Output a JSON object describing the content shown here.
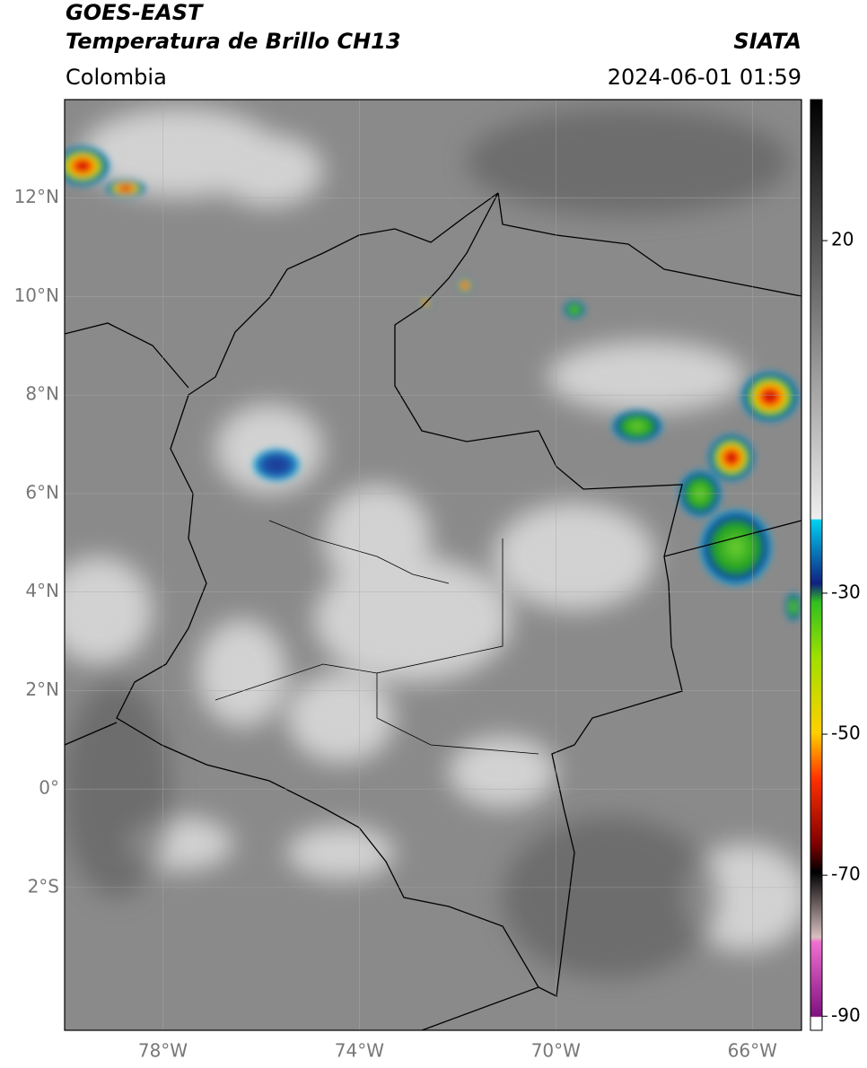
{
  "header": {
    "title_line1": "GOES-EAST",
    "title_line2": "Temperatura de Brillo CH13",
    "region": "Colombia",
    "source": "SIATA",
    "timestamp": "2024-06-01 01:59"
  },
  "map": {
    "lon_range": [
      -80,
      -65
    ],
    "lat_range": [
      -4.9,
      14
    ],
    "lon_ticks": [
      {
        "value": -78,
        "label": "78°W"
      },
      {
        "value": -74,
        "label": "74°W"
      },
      {
        "value": -70,
        "label": "70°W"
      },
      {
        "value": -66,
        "label": "66°W"
      }
    ],
    "lat_ticks": [
      {
        "value": 12,
        "label": "12°N"
      },
      {
        "value": 10,
        "label": "10°N"
      },
      {
        "value": 8,
        "label": "8°N"
      },
      {
        "value": 6,
        "label": "6°N"
      },
      {
        "value": 4,
        "label": "4°N"
      },
      {
        "value": 2,
        "label": "2°N"
      },
      {
        "value": 0,
        "label": "0°"
      },
      {
        "value": -2,
        "label": "2°S"
      }
    ]
  },
  "colorbar": {
    "range": [
      -92,
      40
    ],
    "ticks": [
      20,
      -30,
      -50,
      -70,
      -90
    ]
  }
}
